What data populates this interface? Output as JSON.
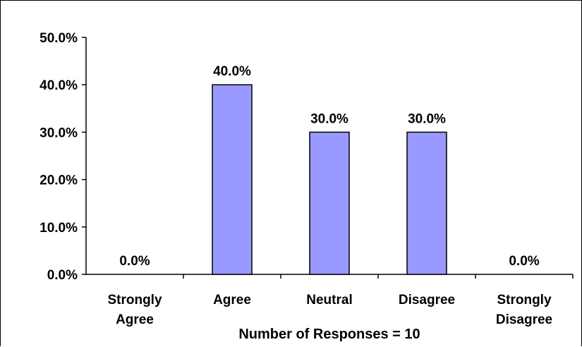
{
  "chart_data": {
    "type": "bar",
    "categories": [
      [
        "Strongly",
        "Agree"
      ],
      [
        "Agree"
      ],
      [
        "Neutral"
      ],
      [
        "Disagree"
      ],
      [
        "Strongly",
        "Disagree"
      ]
    ],
    "values": [
      0.0,
      40.0,
      30.0,
      30.0,
      0.0
    ],
    "data_labels": [
      "0.0%",
      "40.0%",
      "30.0%",
      "30.0%",
      "0.0%"
    ],
    "y_ticks": [
      "0.0%",
      "10.0%",
      "20.0%",
      "30.0%",
      "40.0%",
      "50.0%"
    ],
    "ylim": [
      0,
      50
    ],
    "xlabel": "Number of Responses = 10",
    "title": "",
    "ylabel": "",
    "grid": false,
    "colors": {
      "bar_fill": "#9999ff",
      "bar_stroke": "#000000"
    }
  }
}
